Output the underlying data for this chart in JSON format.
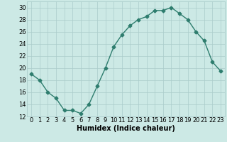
{
  "x": [
    0,
    1,
    2,
    3,
    4,
    5,
    6,
    7,
    8,
    9,
    10,
    11,
    12,
    13,
    14,
    15,
    16,
    17,
    18,
    19,
    20,
    21,
    22,
    23
  ],
  "y": [
    19,
    18,
    16,
    15,
    13,
    13,
    12.5,
    14,
    17,
    20,
    23.5,
    25.5,
    27,
    28,
    28.5,
    29.5,
    29.5,
    30,
    29,
    28,
    26,
    24.5,
    21,
    19.5
  ],
  "line_color": "#2e7d6e",
  "marker": "D",
  "marker_size": 2.5,
  "line_width": 1.0,
  "bg_color": "#cce9e5",
  "grid_color_major": "#aaccca",
  "grid_color_minor": "#bbdbd8",
  "xlabel": "Humidex (Indice chaleur)",
  "ylim": [
    12,
    31
  ],
  "xlim": [
    -0.5,
    23.5
  ],
  "yticks": [
    12,
    14,
    16,
    18,
    20,
    22,
    24,
    26,
    28,
    30
  ],
  "xticks": [
    0,
    1,
    2,
    3,
    4,
    5,
    6,
    7,
    8,
    9,
    10,
    11,
    12,
    13,
    14,
    15,
    16,
    17,
    18,
    19,
    20,
    21,
    22,
    23
  ],
  "xlabel_fontsize": 7,
  "tick_fontsize": 6,
  "fig_width": 3.2,
  "fig_height": 2.0,
  "dpi": 100
}
